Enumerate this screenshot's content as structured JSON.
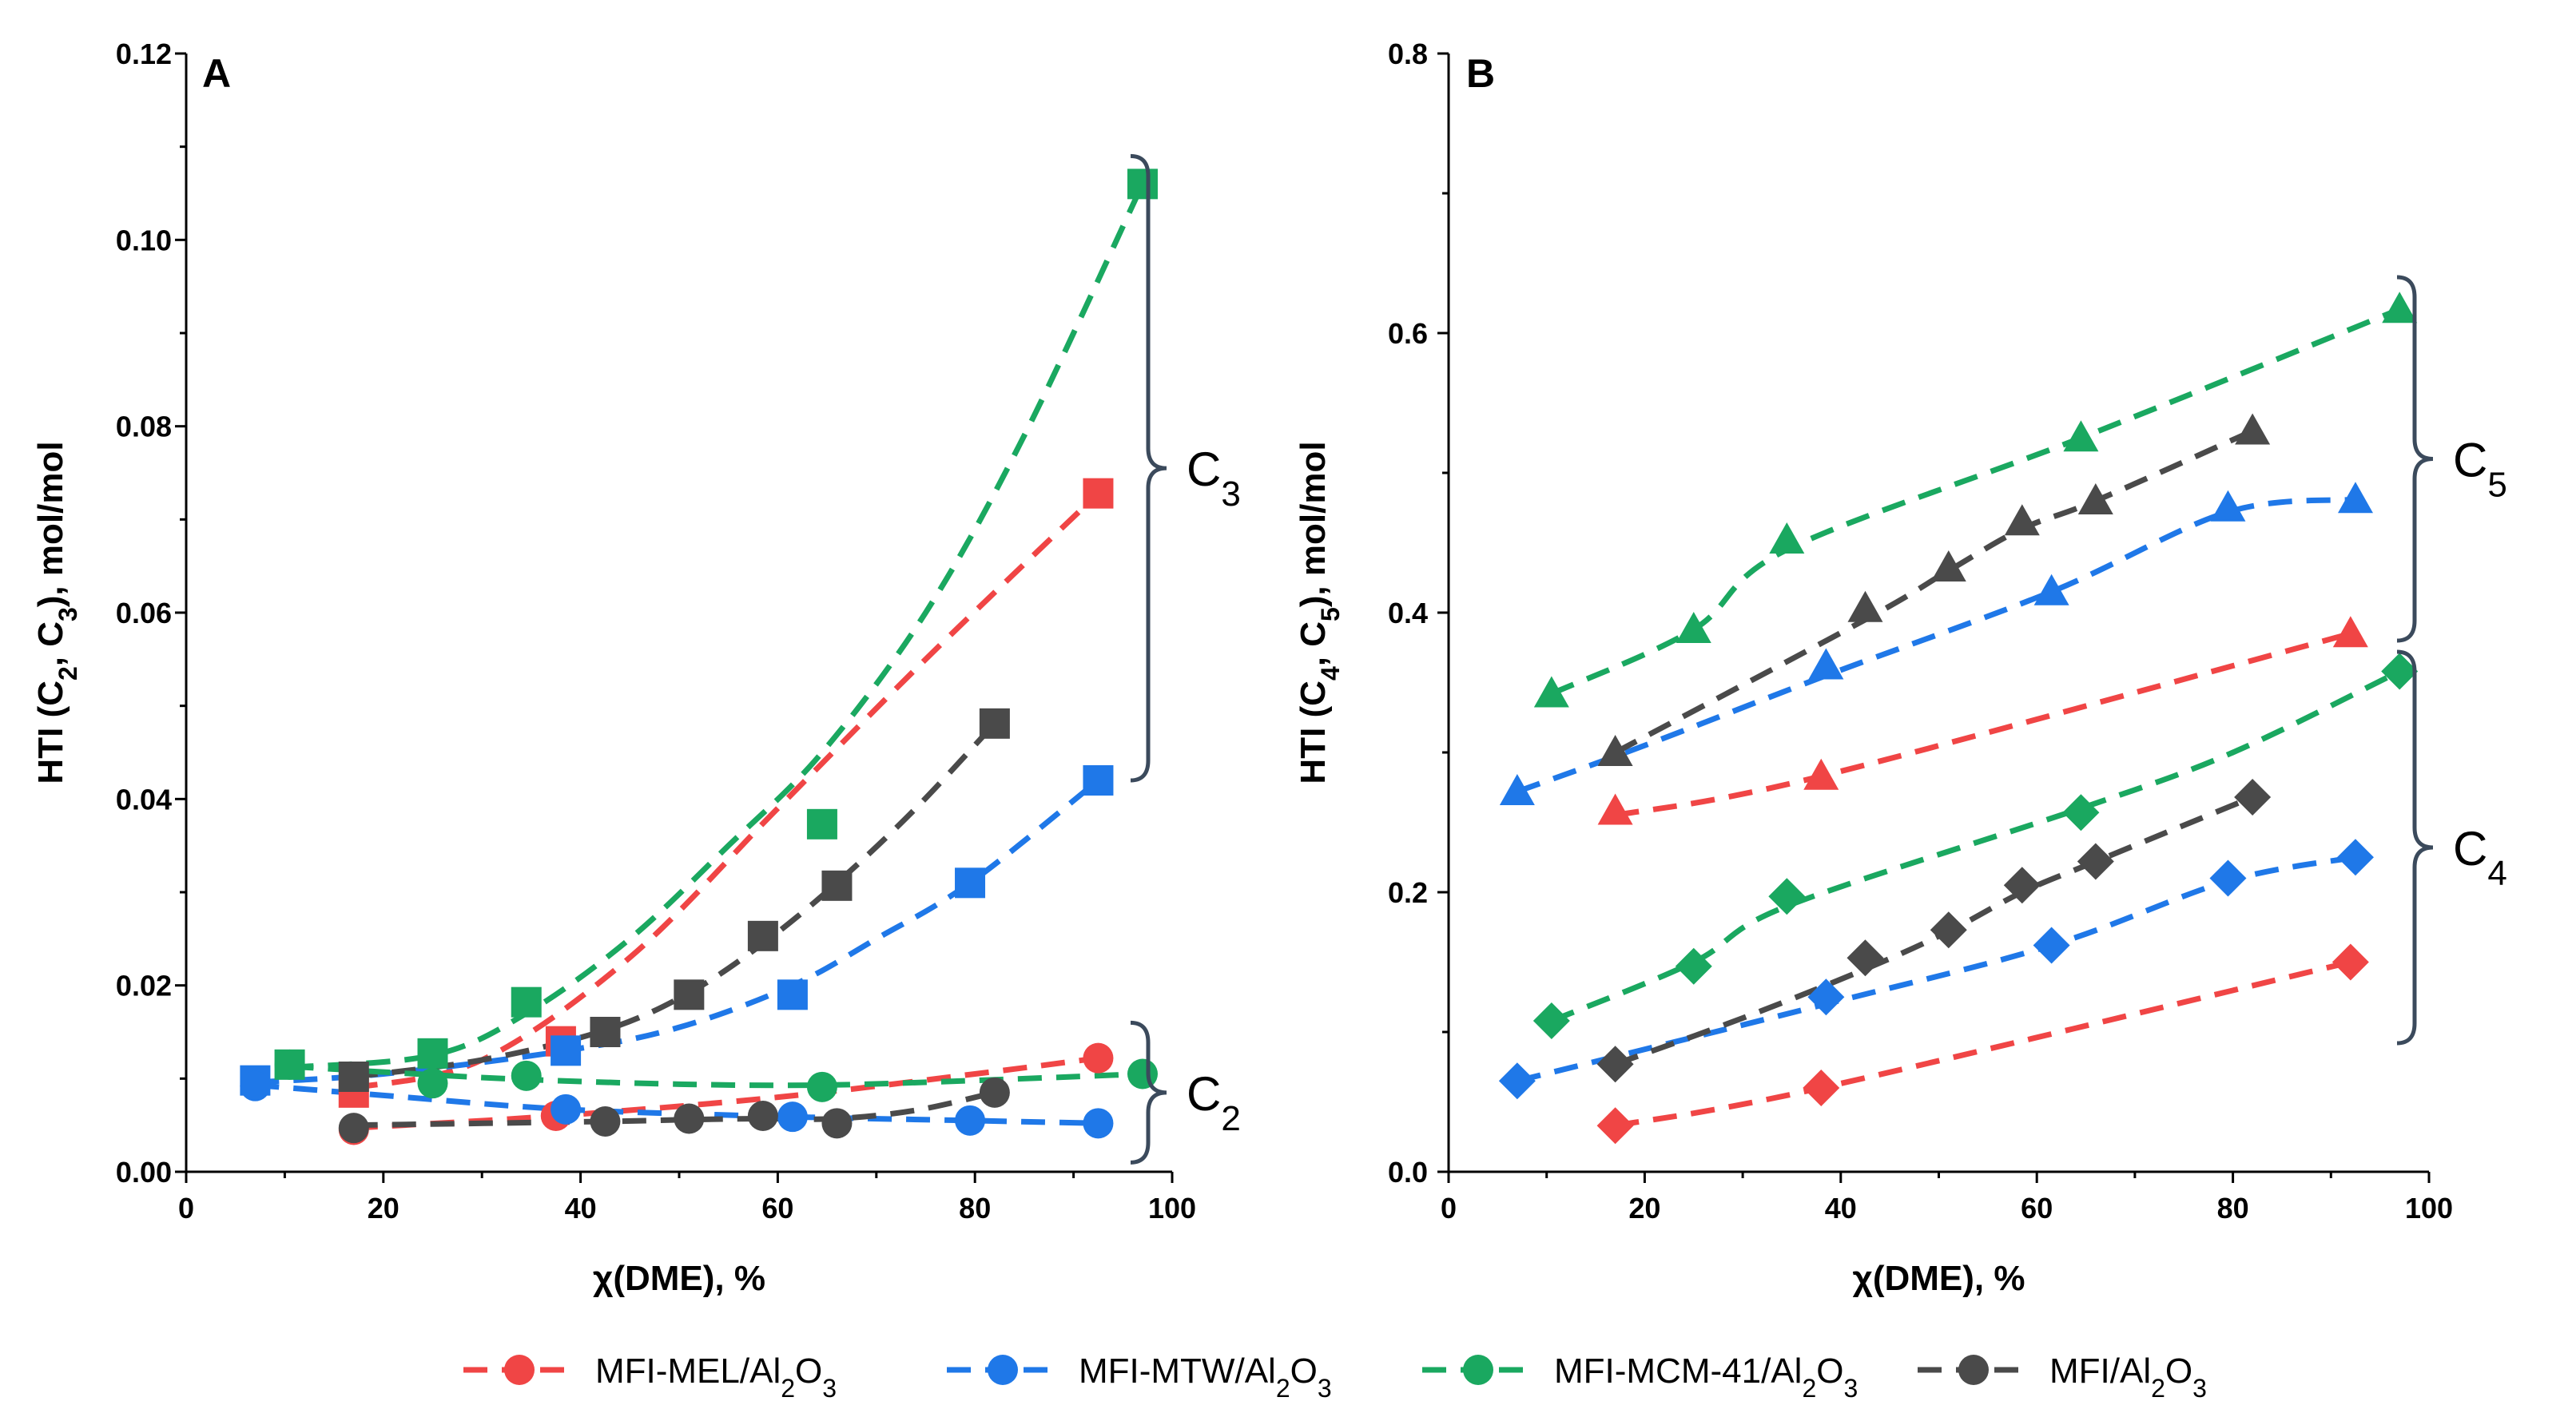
{
  "colors": {
    "MFI-MEL/Al2O3": "#f04545",
    "MFI-MTW/Al2O3": "#1f78e8",
    "MFI-MCM-41/Al2O3": "#1aa860",
    "MFI/Al2O3": "#4a4a4a",
    "brace": "#3b4a5c"
  },
  "legend": [
    {
      "key": "MFI-MEL/Al2O3",
      "prefix": "MFI-MEL/Al",
      "sub1": "2",
      "mid": "O",
      "sub2": "3"
    },
    {
      "key": "MFI-MTW/Al2O3",
      "prefix": "MFI-MTW/Al",
      "sub1": "2",
      "mid": "O",
      "sub2": "3"
    },
    {
      "key": "MFI-MCM-41/Al2O3",
      "prefix": "MFI-MCM-41/Al",
      "sub1": "2",
      "mid": "O",
      "sub2": "3"
    },
    {
      "key": "MFI/Al2O3",
      "prefix": "MFI/Al",
      "sub1": "2",
      "mid": "O",
      "sub2": "3"
    }
  ],
  "chart_data": [
    {
      "type": "scatter",
      "panel": "A",
      "xlabel": "χ(DME), %",
      "ylabel": {
        "pre": "HTI (C",
        "s1": "2",
        "mid": ", C",
        "s2": "3",
        "post": "), mol/mol"
      },
      "xlim": [
        0,
        100
      ],
      "ylim": [
        0,
        0.12
      ],
      "xticks": [
        0,
        20,
        40,
        60,
        80,
        100
      ],
      "yticks": [
        0.0,
        0.02,
        0.04,
        0.06,
        0.08,
        0.1,
        0.12
      ],
      "ytick_labels": [
        "0.00",
        "0.02",
        "0.04",
        "0.06",
        "0.08",
        "0.10",
        "0.12"
      ],
      "braces": [
        {
          "label": "C",
          "sub": "3",
          "y_from": 0.042,
          "y_to": 0.109
        },
        {
          "label": "C",
          "sub": "2",
          "y_from": 0.001,
          "y_to": 0.016
        }
      ],
      "series": [
        {
          "name": "MFI-MEL/Al2O3",
          "group": "C3",
          "marker": "square",
          "x": [
            17,
            38,
            92.5
          ],
          "y": [
            0.0085,
            0.014,
            0.0728
          ],
          "fit_x": [
            17,
            30,
            45,
            60,
            75,
            92.5
          ],
          "fit_y": [
            0.009,
            0.012,
            0.023,
            0.039,
            0.055,
            0.0728
          ]
        },
        {
          "name": "MFI-MTW/Al2O3",
          "group": "C3",
          "marker": "square",
          "x": [
            7,
            38.5,
            61.5,
            79.5,
            92.5
          ],
          "y": [
            0.0098,
            0.013,
            0.019,
            0.031,
            0.042
          ],
          "fit_x": [
            7,
            20,
            38.5,
            50,
            61.5,
            70,
            79.5,
            92.5
          ],
          "fit_y": [
            0.0096,
            0.0105,
            0.013,
            0.0155,
            0.02,
            0.025,
            0.031,
            0.042
          ]
        },
        {
          "name": "MFI-MCM-41/Al2O3",
          "group": "C3",
          "marker": "square",
          "x": [
            10.5,
            25,
            34.5,
            64.5,
            97
          ],
          "y": [
            0.0115,
            0.0127,
            0.0182,
            0.0373,
            0.106
          ],
          "fit_x": [
            10.5,
            25,
            34.5,
            45,
            55,
            64.5,
            75,
            85,
            97
          ],
          "fit_y": [
            0.0112,
            0.0125,
            0.017,
            0.025,
            0.035,
            0.045,
            0.06,
            0.079,
            0.106
          ]
        },
        {
          "name": "MFI/Al2O3",
          "group": "C3",
          "marker": "square",
          "x": [
            17,
            42.5,
            51,
            58.5,
            66,
            82
          ],
          "y": [
            0.0102,
            0.015,
            0.019,
            0.0253,
            0.0307,
            0.0481
          ],
          "fit_x": [
            17,
            30,
            42.5,
            51,
            58.5,
            66,
            74,
            82
          ],
          "fit_y": [
            0.0102,
            0.012,
            0.0152,
            0.0192,
            0.0245,
            0.031,
            0.039,
            0.0481
          ]
        },
        {
          "name": "MFI-MEL/Al2O3",
          "group": "C2",
          "marker": "circle",
          "x": [
            17,
            37.5,
            92.5
          ],
          "y": [
            0.0045,
            0.006,
            0.0122
          ],
          "fit_x": [
            17,
            37.5,
            60,
            80,
            92.5
          ],
          "fit_y": [
            0.0047,
            0.006,
            0.008,
            0.0105,
            0.0122
          ]
        },
        {
          "name": "MFI-MTW/Al2O3",
          "group": "C2",
          "marker": "circle",
          "x": [
            7,
            38.5,
            61.5,
            79.5,
            92.5
          ],
          "y": [
            0.0092,
            0.0067,
            0.0059,
            0.0055,
            0.0052
          ],
          "fit_x": [
            7,
            20,
            38.5,
            61.5,
            79.5,
            92.5
          ],
          "fit_y": [
            0.0093,
            0.0082,
            0.0067,
            0.0059,
            0.0055,
            0.0052
          ]
        },
        {
          "name": "MFI-MCM-41/Al2O3",
          "group": "C2",
          "marker": "circle",
          "x": [
            10.5,
            25,
            34.5,
            64.5,
            97
          ],
          "y": [
            0.0115,
            0.0095,
            0.0103,
            0.0091,
            0.0105
          ],
          "fit_x": [
            10.5,
            25,
            34.5,
            50,
            64.5,
            80,
            97
          ],
          "fit_y": [
            0.0113,
            0.0104,
            0.0099,
            0.0094,
            0.0093,
            0.0098,
            0.0105
          ]
        },
        {
          "name": "MFI/Al2O3",
          "group": "C2",
          "marker": "circle",
          "x": [
            17,
            42.5,
            51,
            58.5,
            66,
            82
          ],
          "y": [
            0.0047,
            0.0054,
            0.0057,
            0.006,
            0.0052,
            0.0085
          ],
          "fit_x": [
            17,
            42.5,
            51,
            58.5,
            66,
            74,
            82
          ],
          "fit_y": [
            0.005,
            0.0054,
            0.0056,
            0.0057,
            0.0057,
            0.0066,
            0.0085
          ]
        }
      ]
    },
    {
      "type": "scatter",
      "panel": "B",
      "xlabel": "χ(DME), %",
      "ylabel": {
        "pre": "HTI (C",
        "s1": "4",
        "mid": ", C",
        "s2": "5",
        "post": "), mol/mol"
      },
      "xlim": [
        0,
        100
      ],
      "ylim": [
        0,
        0.8
      ],
      "xticks": [
        0,
        20,
        40,
        60,
        80,
        100
      ],
      "yticks": [
        0.0,
        0.2,
        0.4,
        0.6,
        0.8
      ],
      "ytick_labels": [
        "0.0",
        "0.2",
        "0.4",
        "0.6",
        "0.8"
      ],
      "braces": [
        {
          "label": "C",
          "sub": "5",
          "y_from": 0.38,
          "y_to": 0.64
        },
        {
          "label": "C",
          "sub": "4",
          "y_from": 0.092,
          "y_to": 0.372
        }
      ],
      "series": [
        {
          "name": "MFI-MEL/Al2O3",
          "group": "C5",
          "marker": "triangle",
          "x": [
            17,
            38,
            92
          ],
          "y": [
            0.258,
            0.283,
            0.385
          ],
          "fit_x": [
            17,
            38,
            92
          ],
          "fit_y": [
            0.255,
            0.283,
            0.385
          ]
        },
        {
          "name": "MFI-MTW/Al2O3",
          "group": "C5",
          "marker": "triangle",
          "x": [
            7,
            38.5,
            61.5,
            79.5,
            92.5
          ],
          "y": [
            0.272,
            0.362,
            0.415,
            0.475,
            0.481
          ],
          "fit_x": [
            7,
            20,
            38.5,
            61.5,
            79.5,
            92.5
          ],
          "fit_y": [
            0.272,
            0.305,
            0.355,
            0.415,
            0.472,
            0.481
          ]
        },
        {
          "name": "MFI-MCM-41/Al2O3",
          "group": "C5",
          "marker": "triangle",
          "x": [
            10.5,
            25,
            34.5,
            64.5,
            97
          ],
          "y": [
            0.342,
            0.388,
            0.452,
            0.525,
            0.617
          ],
          "fit_x": [
            10.5,
            25,
            34.5,
            64.5,
            97
          ],
          "fit_y": [
            0.342,
            0.388,
            0.445,
            0.525,
            0.617
          ]
        },
        {
          "name": "MFI/Al2O3",
          "group": "C5",
          "marker": "triangle",
          "x": [
            17,
            42.5,
            51,
            58.5,
            66,
            82
          ],
          "y": [
            0.3,
            0.403,
            0.432,
            0.465,
            0.48,
            0.53
          ],
          "fit_x": [
            17,
            42.5,
            51,
            58.5,
            66,
            82
          ],
          "fit_y": [
            0.3,
            0.395,
            0.43,
            0.46,
            0.48,
            0.53
          ]
        },
        {
          "name": "MFI-MEL/Al2O3",
          "group": "C4",
          "marker": "diamond",
          "x": [
            17,
            38,
            92
          ],
          "y": [
            0.033,
            0.06,
            0.15
          ],
          "fit_x": [
            17,
            38,
            92
          ],
          "fit_y": [
            0.033,
            0.06,
            0.15
          ]
        },
        {
          "name": "MFI-MTW/Al2O3",
          "group": "C4",
          "marker": "diamond",
          "x": [
            7,
            38.5,
            61.5,
            79.5,
            92.5
          ],
          "y": [
            0.065,
            0.125,
            0.162,
            0.21,
            0.225
          ],
          "fit_x": [
            7,
            38.5,
            61.5,
            79.5,
            92.5
          ],
          "fit_y": [
            0.065,
            0.12,
            0.162,
            0.208,
            0.225
          ]
        },
        {
          "name": "MFI-MCM-41/Al2O3",
          "group": "C4",
          "marker": "diamond",
          "x": [
            10.5,
            25,
            34.5,
            64.5,
            97
          ],
          "y": [
            0.108,
            0.147,
            0.197,
            0.257,
            0.358
          ],
          "fit_x": [
            10.5,
            25,
            34.5,
            64.5,
            80,
            97
          ],
          "fit_y": [
            0.108,
            0.15,
            0.19,
            0.26,
            0.3,
            0.358
          ]
        },
        {
          "name": "MFI/Al2O3",
          "group": "C4",
          "marker": "diamond",
          "x": [
            17,
            42.5,
            51,
            58.5,
            66,
            82
          ],
          "y": [
            0.077,
            0.153,
            0.173,
            0.205,
            0.222,
            0.268
          ],
          "fit_x": [
            17,
            30,
            42.5,
            51,
            58.5,
            66,
            82
          ],
          "fit_y": [
            0.077,
            0.11,
            0.145,
            0.172,
            0.2,
            0.222,
            0.268
          ]
        }
      ]
    }
  ]
}
